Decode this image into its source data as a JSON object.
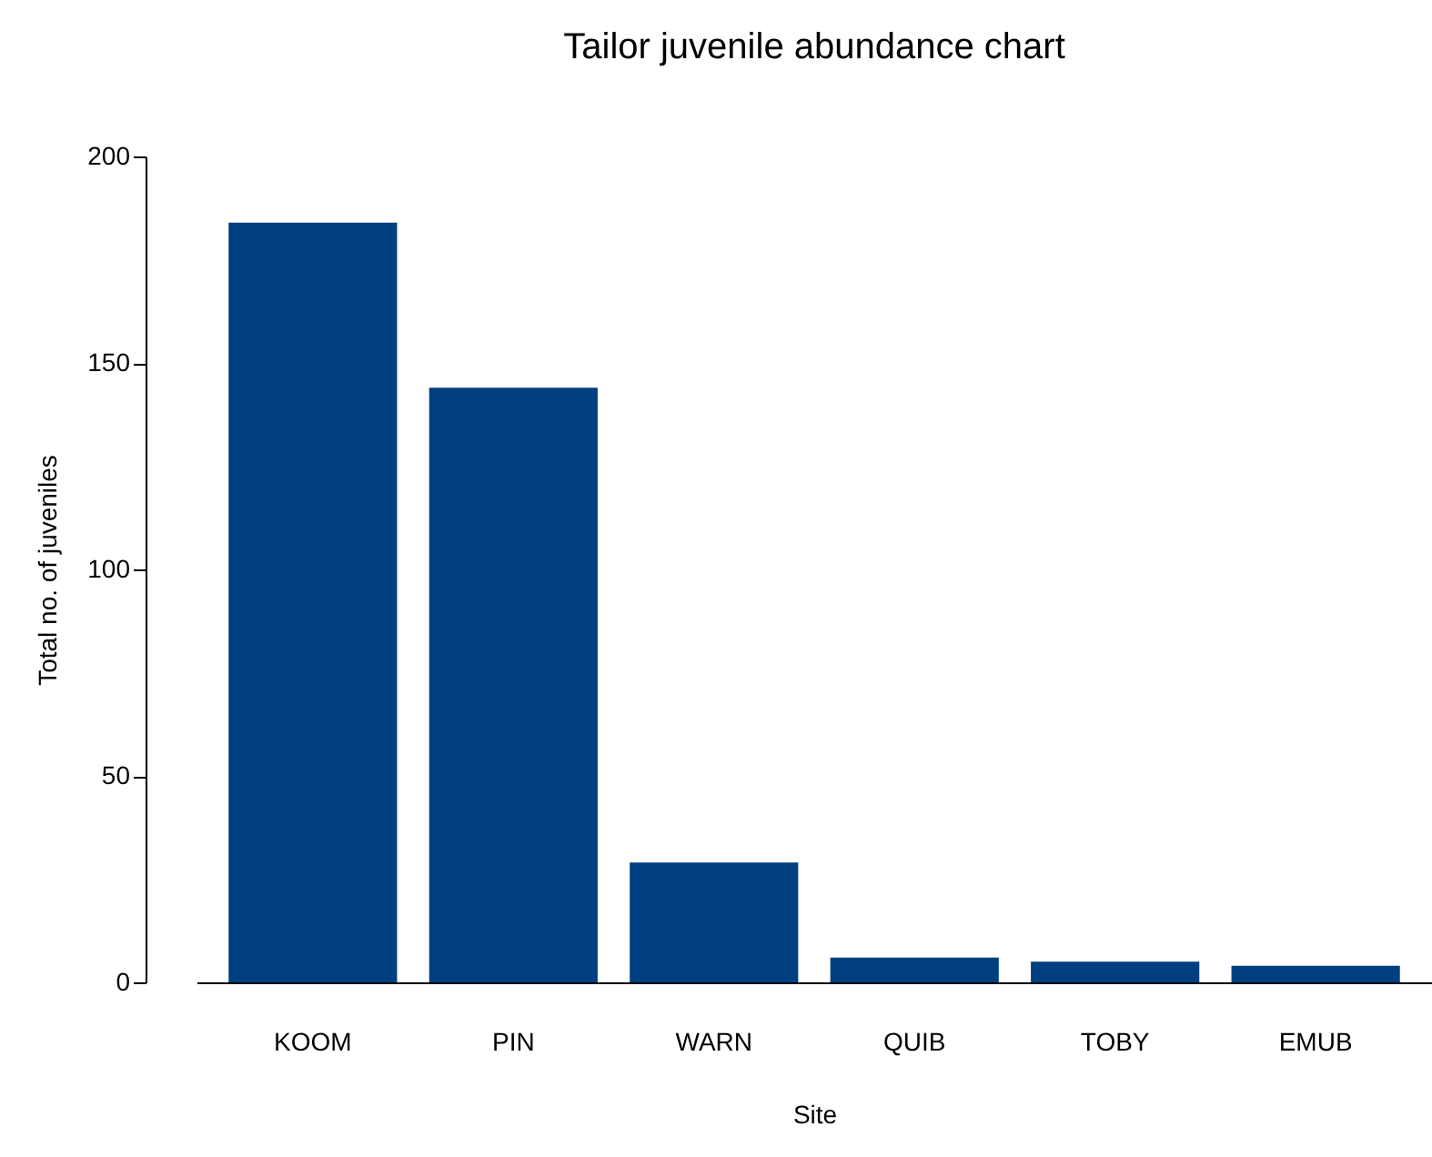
{
  "chart_data": {
    "type": "bar",
    "title": "Tailor juvenile abundance chart",
    "xlabel": "Site",
    "ylabel": "Total no. of juveniles",
    "categories": [
      "KOOM",
      "PIN",
      "WARN",
      "QUIB",
      "TOBY",
      "EMUB"
    ],
    "values": [
      184,
      144,
      29,
      6,
      5,
      4
    ],
    "color": "#003f7f",
    "ylim": [
      0,
      200
    ],
    "yticks": [
      0,
      50,
      100,
      150,
      200
    ],
    "grid": false
  }
}
